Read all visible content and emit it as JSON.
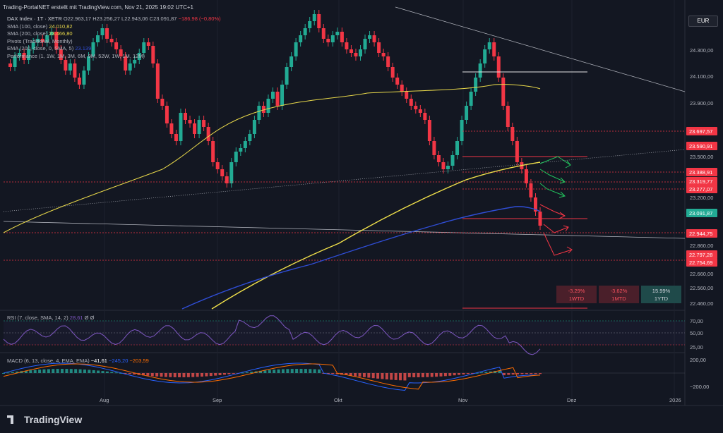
{
  "header": {
    "text": "Trading-PortalNET erstellt mit TradingView.com, Nov 21, 2025 19:02 UTC+1"
  },
  "legend": {
    "symbol": "DAX Index · 1T · XETR",
    "ohlc": "O22.963,17 H23.256,27 L22.943,06 C23.091,87",
    "change": "−186,98 (−0,80%)",
    "sma100": {
      "label": "SMA (100, close)",
      "value": "24.010,82",
      "color": "#e8d84a"
    },
    "sma200": {
      "label": "SMA (200, close)",
      "value": "23.466,80",
      "color": "#e8d84a"
    },
    "pivots": "Pivots (Traditional, Monthly)",
    "ema": {
      "label": "EMA (200, close, 0, SMA, 5)",
      "value": "23.139",
      "color": "#2f4dd4"
    },
    "performance": "Performance (1, 1W, 1M, 3M, 6M, 9M, 52W, 1W, 1M, 12M)"
  },
  "currency": "EUR",
  "performance_boxes": [
    {
      "value": "-3.29%",
      "label": "1WTD",
      "bg": "#4a1f2a",
      "color": "#f7525f"
    },
    {
      "value": "-3.62%",
      "label": "1MTD",
      "bg": "#4a1f2a",
      "color": "#f7525f"
    },
    {
      "value": "15.99%",
      "label": "1YTD",
      "bg": "#1f4a4a",
      "color": "#d1d4dc"
    }
  ],
  "rsi_legend": {
    "label": "RSI (7, close, SMA, 14, 2)",
    "value": "28,61",
    "extra": "Ø Ø"
  },
  "macd_legend": {
    "label": "MACD (6, 13, close, 4, EMA, EMA)",
    "v1": "−41,61",
    "v2": "−245,20",
    "v3": "−203,59"
  },
  "logo": "TradingView",
  "colors": {
    "up": "#22ab94",
    "down": "#f23645",
    "sma_yellow": "#e8d84a",
    "ema_blue": "#2f4dd4",
    "rsi": "#7e57c2",
    "macd": "#2962ff",
    "signal": "#ff6d00"
  },
  "chart_data": [
    {
      "type": "candlestick",
      "title": "DAX Index · 1T · XETR",
      "y_axis_ticks": [
        "24.300,00",
        "24.100,00",
        "23.900,00",
        "23.500,00",
        "23.200,00",
        "22.860,00",
        "22.660,00",
        "22.560,00",
        "22.460,00"
      ],
      "x_axis_ticks": [
        "Aug",
        "Sep",
        "Okt",
        "Nov",
        "Dez",
        "2026"
      ],
      "price_labels": [
        {
          "value": "23.697,57",
          "color": "#f23645"
        },
        {
          "value": "23.590,91",
          "color": "#f23645"
        },
        {
          "value": "23.388,91",
          "color": "#f23645"
        },
        {
          "value": "23.319,77",
          "color": "#f23645"
        },
        {
          "value": "23.277,07",
          "color": "#f23645"
        },
        {
          "value": "23.091,87",
          "color": "#f23645"
        },
        {
          "value": "22.944,75",
          "color": "#f23645"
        },
        {
          "value": "22.797,28",
          "color": "#f23645"
        },
        {
          "value": "22.754,69",
          "color": "#f23645"
        }
      ],
      "last_close": 23091.87,
      "series": [
        {
          "name": "SMA (100, close)",
          "last": 24010.82
        },
        {
          "name": "SMA (200, close)",
          "last": 23466.8
        },
        {
          "name": "EMA (200, close, 0, SMA, 5)",
          "last": 23139
        }
      ]
    },
    {
      "type": "line",
      "title": "RSI (7, close, SMA, 14, 2)",
      "y_axis_ticks": [
        "70,00",
        "50,00",
        "25,00"
      ],
      "last": 28.61
    },
    {
      "type": "bar",
      "title": "MACD (6, 13, close, 4, EMA, EMA)",
      "y_axis_ticks": [
        "200,00",
        "−200,00"
      ],
      "values": {
        "histogram": -41.61,
        "macd": -245.2,
        "signal": -203.59
      }
    }
  ]
}
